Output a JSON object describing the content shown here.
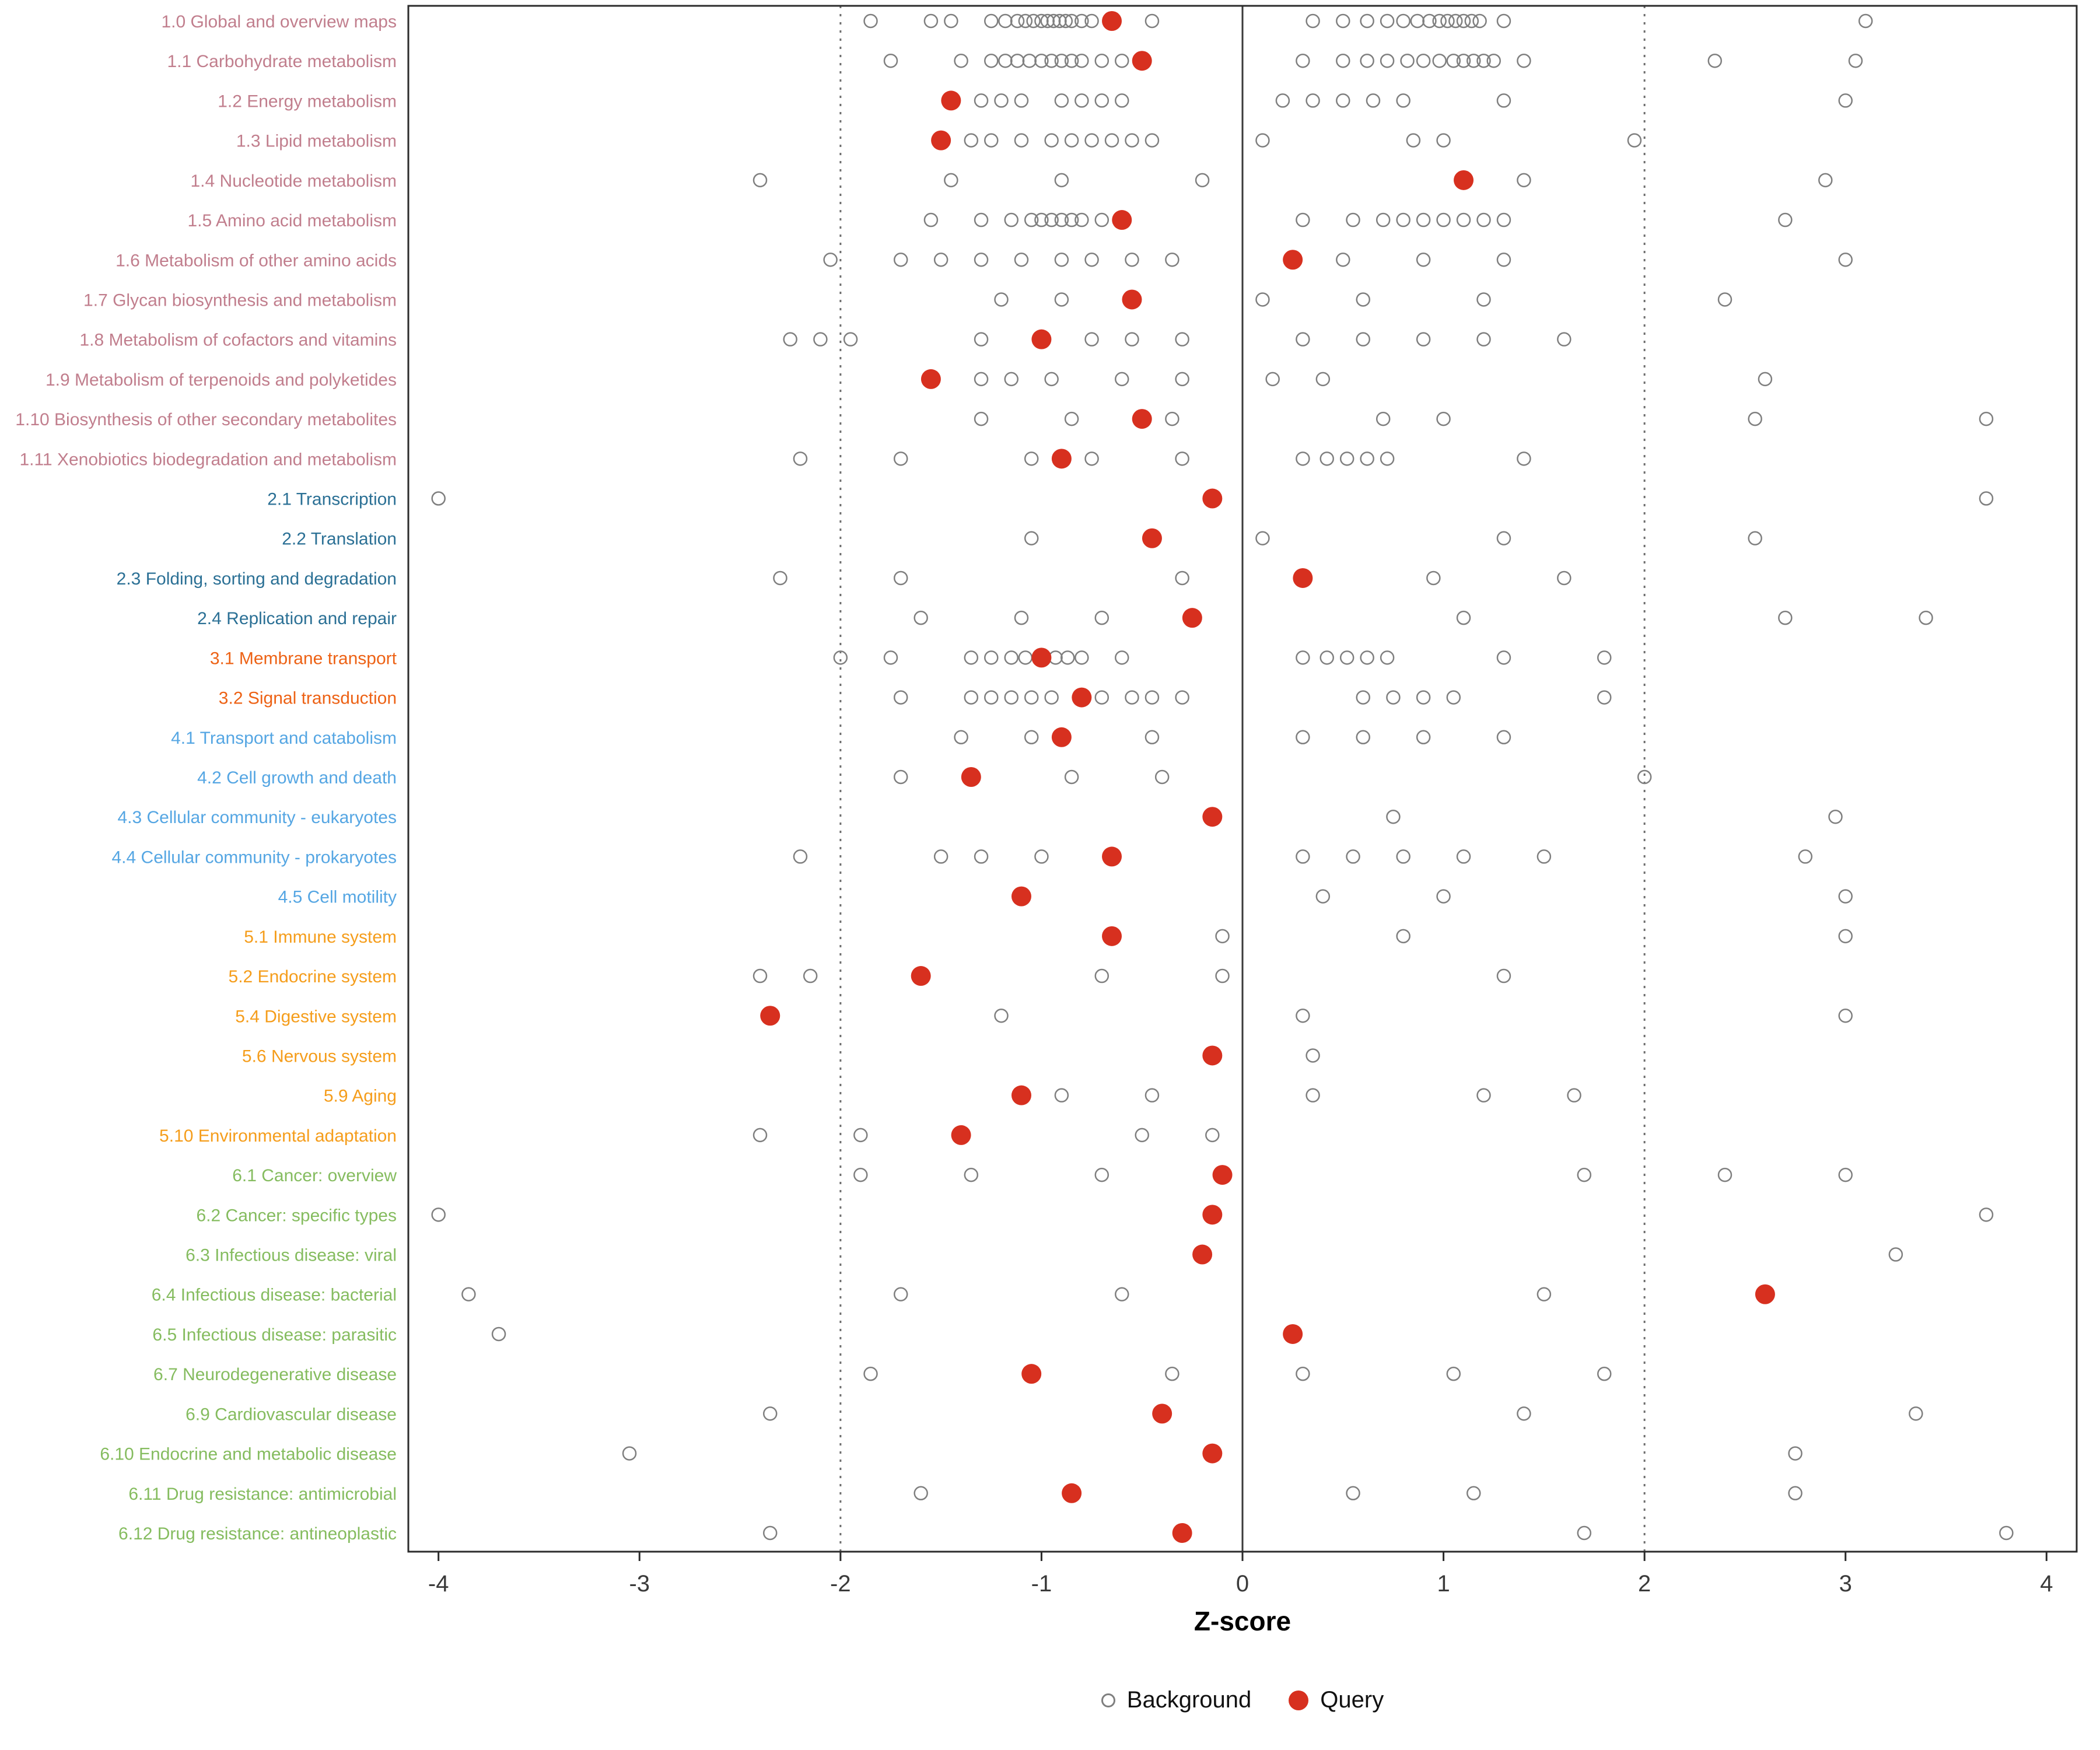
{
  "colors": {
    "query": "#D7301F",
    "background_stroke": "#7F7F7F",
    "axis_text": "#3A3A3A",
    "panel_border": "#2B2B2B",
    "zero_line": "#3A3A3A",
    "threshold_line": "#6E6E6E",
    "groups": {
      "metabolism": "#C17E8D",
      "genetic_information_processing": "#2B7095",
      "environmental_information_processing": "#ED6215",
      "cellular_processes": "#55A6E3",
      "organismal_systems": "#F59D1B",
      "human_diseases": "#85BC5F"
    }
  },
  "chart_data": {
    "type": "scatter",
    "title": "",
    "xlabel": "Z-score",
    "ylabel": "",
    "xlim": [
      -4.15,
      4.15
    ],
    "xticks": [
      -4,
      -3,
      -2,
      -1,
      0,
      1,
      2,
      3,
      4
    ],
    "grid": false,
    "legend_position": "bottom",
    "reference_lines": [
      {
        "x": -2,
        "style": "dotted"
      },
      {
        "x": 0,
        "style": "solid"
      },
      {
        "x": 2,
        "style": "dotted"
      }
    ],
    "legend": [
      {
        "label": "Background",
        "type": "open"
      },
      {
        "label": "Query",
        "type": "filled"
      }
    ],
    "rows": [
      {
        "label": "1.0 Global and overview maps",
        "group": "metabolism",
        "query": -0.65,
        "background": [
          -1.85,
          -1.55,
          -1.45,
          -1.25,
          -1.18,
          -1.12,
          -1.08,
          -1.04,
          -1.0,
          -0.97,
          -0.94,
          -0.91,
          -0.88,
          -0.85,
          -0.8,
          -0.75,
          -0.45,
          0.35,
          0.5,
          0.62,
          0.72,
          0.8,
          0.87,
          0.93,
          0.98,
          1.02,
          1.06,
          1.1,
          1.14,
          1.18,
          1.3,
          3.1
        ]
      },
      {
        "label": "1.1 Carbohydrate metabolism",
        "group": "metabolism",
        "query": -0.5,
        "background": [
          -1.75,
          -1.4,
          -1.25,
          -1.18,
          -1.12,
          -1.06,
          -1.0,
          -0.95,
          -0.9,
          -0.85,
          -0.8,
          -0.7,
          -0.6,
          0.3,
          0.5,
          0.62,
          0.72,
          0.82,
          0.9,
          0.98,
          1.05,
          1.1,
          1.15,
          1.2,
          1.25,
          1.4,
          2.35,
          3.05
        ]
      },
      {
        "label": "1.2 Energy metabolism",
        "group": "metabolism",
        "query": -1.45,
        "background": [
          -1.3,
          -1.2,
          -1.1,
          -0.9,
          -0.8,
          -0.7,
          -0.6,
          0.2,
          0.35,
          0.5,
          0.65,
          0.8,
          1.3,
          3.0
        ]
      },
      {
        "label": "1.3 Lipid metabolism",
        "group": "metabolism",
        "query": -1.5,
        "background": [
          -1.35,
          -1.25,
          -1.1,
          -0.95,
          -0.85,
          -0.75,
          -0.65,
          -0.55,
          -0.45,
          0.1,
          0.85,
          1.0,
          1.95
        ]
      },
      {
        "label": "1.4 Nucleotide metabolism",
        "group": "metabolism",
        "query": 1.1,
        "background": [
          -2.4,
          -1.45,
          -0.9,
          -0.2,
          1.4,
          2.9
        ]
      },
      {
        "label": "1.5 Amino acid metabolism",
        "group": "metabolism",
        "query": -0.6,
        "background": [
          -1.55,
          -1.3,
          -1.15,
          -1.05,
          -1.0,
          -0.95,
          -0.9,
          -0.85,
          -0.8,
          -0.7,
          0.3,
          0.55,
          0.7,
          0.8,
          0.9,
          1.0,
          1.1,
          1.2,
          1.3,
          2.7
        ]
      },
      {
        "label": "1.6 Metabolism of other amino acids",
        "group": "metabolism",
        "query": 0.25,
        "background": [
          -2.05,
          -1.7,
          -1.5,
          -1.3,
          -1.1,
          -0.9,
          -0.75,
          -0.55,
          -0.35,
          0.5,
          0.9,
          1.3,
          3.0
        ]
      },
      {
        "label": "1.7 Glycan biosynthesis and metabolism",
        "group": "metabolism",
        "query": -0.55,
        "background": [
          -1.2,
          -0.9,
          0.1,
          0.6,
          1.2,
          2.4
        ]
      },
      {
        "label": "1.8 Metabolism of cofactors and vitamins",
        "group": "metabolism",
        "query": -1.0,
        "background": [
          -2.25,
          -2.1,
          -1.95,
          -1.3,
          -0.75,
          -0.55,
          -0.3,
          0.3,
          0.6,
          0.9,
          1.2,
          1.6
        ]
      },
      {
        "label": "1.9 Metabolism of terpenoids and polyketides",
        "group": "metabolism",
        "query": -1.55,
        "background": [
          -1.3,
          -1.15,
          -0.95,
          -0.6,
          -0.3,
          0.15,
          0.4,
          2.6
        ]
      },
      {
        "label": "1.10 Biosynthesis of other secondary metabolites",
        "group": "metabolism",
        "query": -0.5,
        "background": [
          -1.3,
          -0.85,
          -0.35,
          0.7,
          1.0,
          2.55,
          3.7
        ]
      },
      {
        "label": "1.11 Xenobiotics biodegradation and metabolism",
        "group": "metabolism",
        "query": -0.9,
        "background": [
          -2.2,
          -1.7,
          -1.05,
          -0.75,
          -0.3,
          0.3,
          0.42,
          0.52,
          0.62,
          0.72,
          1.4
        ]
      },
      {
        "label": "2.1 Transcription",
        "group": "genetic_information_processing",
        "query": -0.15,
        "background": [
          -4.0,
          3.7
        ]
      },
      {
        "label": "2.2 Translation",
        "group": "genetic_information_processing",
        "query": -0.45,
        "background": [
          -1.05,
          0.1,
          1.3,
          2.55
        ]
      },
      {
        "label": "2.3 Folding, sorting and degradation",
        "group": "genetic_information_processing",
        "query": 0.3,
        "background": [
          -2.3,
          -1.7,
          -0.3,
          0.95,
          1.6
        ]
      },
      {
        "label": "2.4 Replication and repair",
        "group": "genetic_information_processing",
        "query": -0.25,
        "background": [
          -1.6,
          -1.1,
          -0.7,
          1.1,
          2.7,
          3.4
        ]
      },
      {
        "label": "3.1 Membrane transport",
        "group": "environmental_information_processing",
        "query": -1.0,
        "background": [
          -2.0,
          -1.75,
          -1.35,
          -1.25,
          -1.15,
          -1.08,
          -1.0,
          -0.93,
          -0.87,
          -0.8,
          -0.6,
          0.3,
          0.42,
          0.52,
          0.62,
          0.72,
          1.3,
          1.8
        ]
      },
      {
        "label": "3.2 Signal transduction",
        "group": "environmental_information_processing",
        "query": -0.8,
        "background": [
          -1.7,
          -1.35,
          -1.25,
          -1.15,
          -1.05,
          -0.95,
          -0.7,
          -0.55,
          -0.45,
          -0.3,
          0.6,
          0.75,
          0.9,
          1.05,
          1.8
        ]
      },
      {
        "label": "4.1 Transport and catabolism",
        "group": "cellular_processes",
        "query": -0.9,
        "background": [
          -1.4,
          -1.05,
          -0.45,
          0.3,
          0.6,
          0.9,
          1.3
        ]
      },
      {
        "label": "4.2 Cell growth and death",
        "group": "cellular_processes",
        "query": -1.35,
        "background": [
          -1.7,
          -0.85,
          -0.4,
          2.0
        ]
      },
      {
        "label": "4.3 Cellular community - eukaryotes",
        "group": "cellular_processes",
        "query": -0.15,
        "background": [
          0.75,
          2.95
        ]
      },
      {
        "label": "4.4 Cellular community - prokaryotes",
        "group": "cellular_processes",
        "query": -0.65,
        "background": [
          -2.2,
          -1.5,
          -1.3,
          -1.0,
          0.3,
          0.55,
          0.8,
          1.1,
          1.5,
          2.8
        ]
      },
      {
        "label": "4.5 Cell motility",
        "group": "cellular_processes",
        "query": -1.1,
        "background": [
          0.4,
          1.0,
          3.0
        ]
      },
      {
        "label": "5.1 Immune system",
        "group": "organismal_systems",
        "query": -0.65,
        "background": [
          -0.1,
          0.8,
          3.0
        ]
      },
      {
        "label": "5.2 Endocrine system",
        "group": "organismal_systems",
        "query": -1.6,
        "background": [
          -2.4,
          -2.15,
          -0.7,
          -0.1,
          1.3
        ]
      },
      {
        "label": "5.4 Digestive system",
        "group": "organismal_systems",
        "query": -2.35,
        "background": [
          -1.2,
          0.3,
          3.0
        ]
      },
      {
        "label": "5.6 Nervous system",
        "group": "organismal_systems",
        "query": -0.15,
        "background": [
          0.35
        ]
      },
      {
        "label": "5.9 Aging",
        "group": "organismal_systems",
        "query": -1.1,
        "background": [
          -0.9,
          -0.45,
          0.35,
          1.2,
          1.65
        ]
      },
      {
        "label": "5.10 Environmental adaptation",
        "group": "organismal_systems",
        "query": -1.4,
        "background": [
          -2.4,
          -1.9,
          -0.5,
          -0.15
        ]
      },
      {
        "label": "6.1 Cancer: overview",
        "group": "human_diseases",
        "query": -0.1,
        "background": [
          -1.9,
          -1.35,
          -0.7,
          1.7,
          2.4,
          3.0
        ]
      },
      {
        "label": "6.2 Cancer: specific types",
        "group": "human_diseases",
        "query": -0.15,
        "background": [
          -4.0,
          3.7
        ]
      },
      {
        "label": "6.3 Infectious disease: viral",
        "group": "human_diseases",
        "query": -0.2,
        "background": [
          3.25
        ]
      },
      {
        "label": "6.4 Infectious disease: bacterial",
        "group": "human_diseases",
        "query": 2.6,
        "background": [
          -3.85,
          -1.7,
          -0.6,
          1.5
        ]
      },
      {
        "label": "6.5 Infectious disease: parasitic",
        "group": "human_diseases",
        "query": 0.25,
        "background": [
          -3.7
        ]
      },
      {
        "label": "6.7 Neurodegenerative disease",
        "group": "human_diseases",
        "query": -1.05,
        "background": [
          -1.85,
          -0.35,
          0.3,
          1.05,
          1.8
        ]
      },
      {
        "label": "6.9 Cardiovascular disease",
        "group": "human_diseases",
        "query": -0.4,
        "background": [
          -2.35,
          1.4,
          3.35
        ]
      },
      {
        "label": "6.10 Endocrine and metabolic disease",
        "group": "human_diseases",
        "query": -0.15,
        "background": [
          -3.05,
          2.75
        ]
      },
      {
        "label": "6.11 Drug resistance: antimicrobial",
        "group": "human_diseases",
        "query": -0.85,
        "background": [
          -1.6,
          0.55,
          1.15,
          2.75
        ]
      },
      {
        "label": "6.12 Drug resistance: antineoplastic",
        "group": "human_diseases",
        "query": -0.3,
        "background": [
          -2.35,
          1.7,
          3.8
        ]
      }
    ]
  }
}
